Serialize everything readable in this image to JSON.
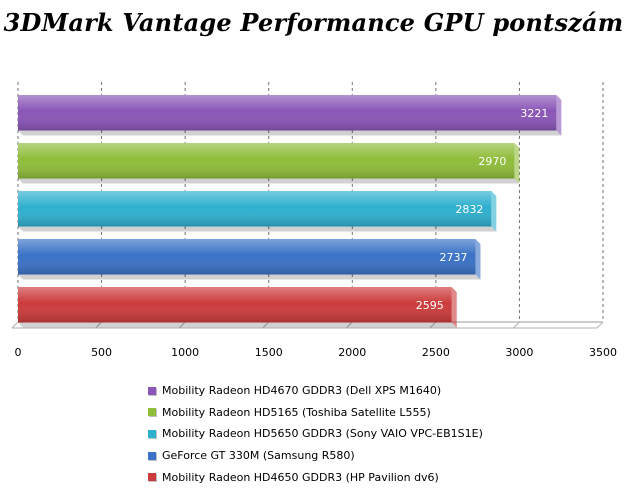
{
  "chart_data": {
    "type": "bar",
    "orientation": "horizontal",
    "title": "3DMark Vantage Performance GPU pontszám",
    "xlabel": "",
    "ylabel": "",
    "xlim": [
      0,
      3500
    ],
    "xticks": [
      0,
      500,
      1000,
      1500,
      2000,
      2500,
      3000,
      3500
    ],
    "grid": true,
    "legend_position": "bottom",
    "series": [
      {
        "name": "Mobility Radeon HD4670 GDDR3 (Dell XPS M1640)",
        "value": 3221,
        "color": "#8a56b8"
      },
      {
        "name": "Mobility Radeon HD5165 (Toshiba Satellite L555)",
        "value": 2970,
        "color": "#8fbd3a"
      },
      {
        "name": "Mobility Radeon HD5650 GDDR3 (Sony VAIO VPC-EB1S1E)",
        "value": 2832,
        "color": "#2fb0cf"
      },
      {
        "name": "GeForce GT 330M (Samsung R580)",
        "value": 2737,
        "color": "#3a72c6"
      },
      {
        "name": "Mobility Radeon HD4650 GDDR3 (HP Pavilion dv6)",
        "value": 2595,
        "color": "#cc3b3b"
      }
    ]
  }
}
